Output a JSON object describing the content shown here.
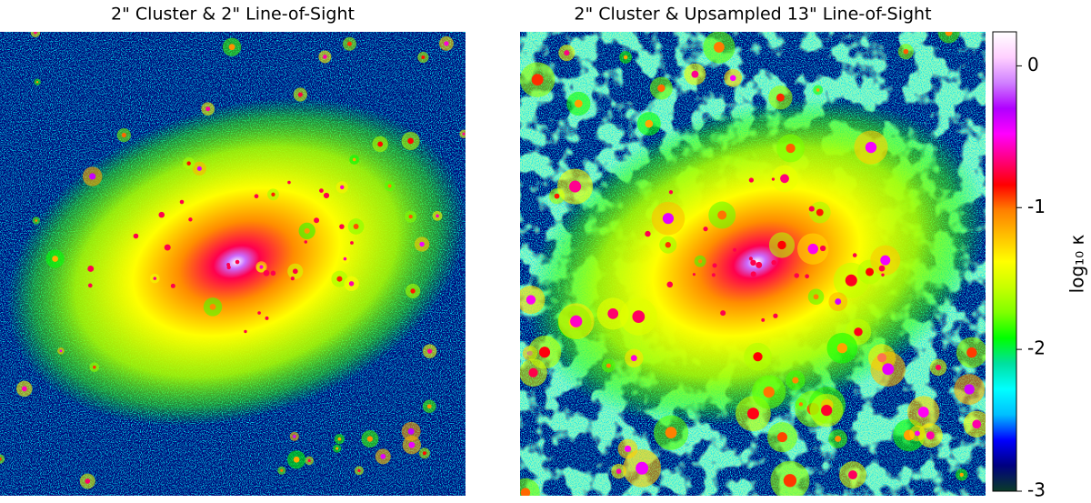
{
  "chart_data": {
    "type": "image",
    "panels": [
      {
        "title": "2\" Cluster & 2\" Line-of-Sight"
      },
      {
        "title": "2\" Cluster & Upsampled 13\" Line-of-Sight"
      }
    ],
    "colorbar": {
      "label": "log₁₀ κ",
      "lim": [
        -3,
        0.24
      ],
      "ticks": [
        0,
        -1,
        -2,
        -3
      ],
      "colors": [
        "#0a3c28",
        "#000080",
        "#0000ff",
        "#00bfff",
        "#00ffff",
        "#00e0a0",
        "#00ff00",
        "#80ff00",
        "#c8ff00",
        "#ffff00",
        "#ffc000",
        "#ff8000",
        "#ff0000",
        "#ff0080",
        "#ff00ff",
        "#b000ff",
        "#d080ff",
        "#ffd0ff",
        "#ffffff"
      ]
    }
  }
}
